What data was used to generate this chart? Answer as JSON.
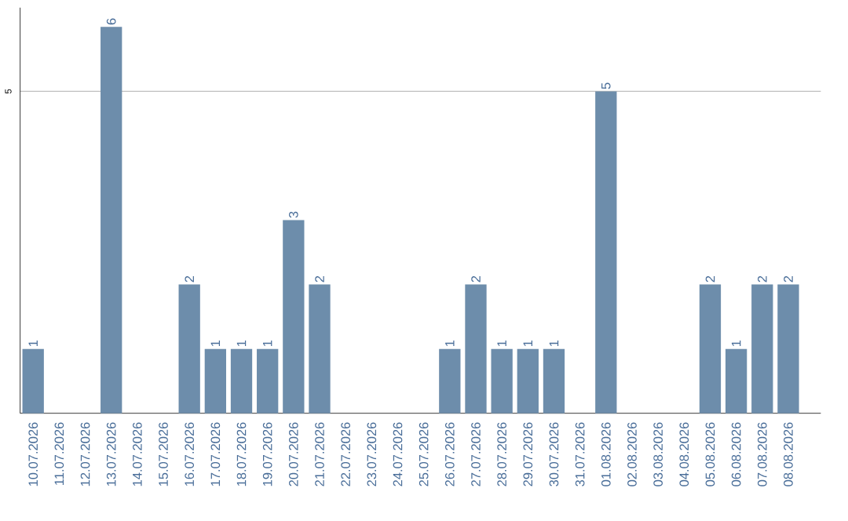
{
  "chart_data": {
    "type": "bar",
    "categories": [
      "10.07.2026",
      "11.07.2026",
      "12.07.2026",
      "13.07.2026",
      "14.07.2026",
      "15.07.2026",
      "16.07.2026",
      "17.07.2026",
      "18.07.2026",
      "19.07.2026",
      "20.07.2026",
      "21.07.2026",
      "22.07.2026",
      "23.07.2026",
      "24.07.2026",
      "25.07.2026",
      "26.07.2026",
      "27.07.2026",
      "28.07.2026",
      "29.07.2026",
      "30.07.2026",
      "31.07.2026",
      "01.08.2026",
      "02.08.2026",
      "03.08.2026",
      "04.08.2026",
      "05.08.2026",
      "06.08.2026",
      "07.08.2026",
      "08.08.2026"
    ],
    "values": [
      1,
      0,
      0,
      6,
      0,
      0,
      2,
      1,
      1,
      1,
      3,
      2,
      0,
      0,
      0,
      0,
      1,
      2,
      1,
      1,
      1,
      0,
      5,
      0,
      0,
      0,
      2,
      1,
      2,
      2
    ],
    "value_labels": [
      "1",
      null,
      null,
      "6",
      null,
      null,
      "2",
      "1",
      "1",
      "1",
      "3",
      "2",
      null,
      null,
      null,
      null,
      "1",
      "2",
      "1",
      "1",
      "1",
      null,
      "5",
      null,
      null,
      null,
      "2",
      "1",
      "2",
      "2"
    ],
    "color": "#6d8dab",
    "ylim": [
      0,
      6.3
    ],
    "yticks": [
      5
    ],
    "grid": "y"
  }
}
